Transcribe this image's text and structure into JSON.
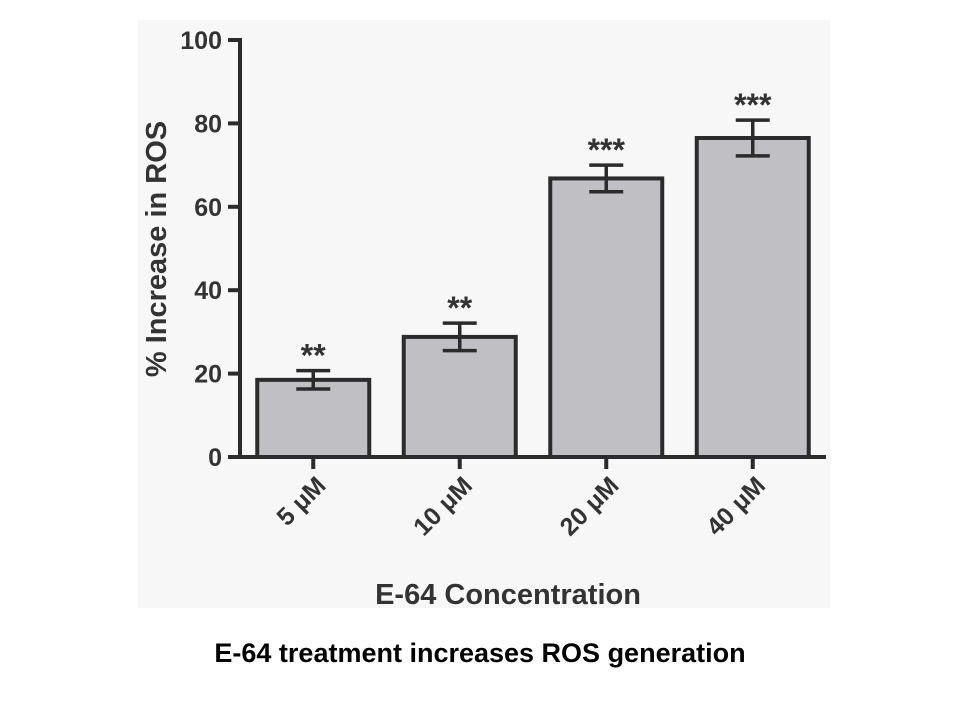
{
  "chart_data": {
    "type": "bar",
    "categories": [
      "5 μM",
      "10 μM",
      "20 μM",
      "40 μM"
    ],
    "values": [
      18.5,
      28.8,
      66.8,
      76.5
    ],
    "errors": [
      2.2,
      3.3,
      3.2,
      4.3
    ],
    "significance": [
      "**",
      "**",
      "***",
      "***"
    ],
    "xlabel": "E-64 Concentration",
    "ylabel": "% Increase in ROS",
    "ylim": [
      0,
      100
    ],
    "yticks": [
      0,
      20,
      40,
      60,
      80,
      100
    ],
    "grid": false,
    "bar_fill": "#c0c0c4",
    "bar_stroke": "#2b2b2b"
  },
  "caption": "E-64 treatment increases ROS generation"
}
